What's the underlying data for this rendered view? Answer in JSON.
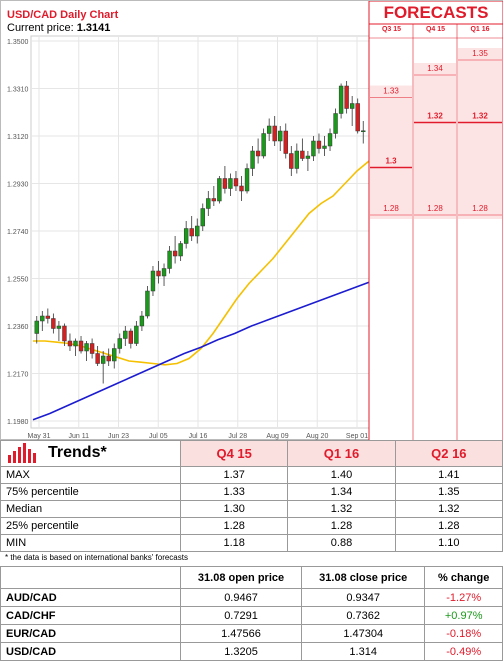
{
  "chart_data": {
    "type": "candlestick",
    "title": "USD/CAD Daily Chart",
    "current_price_label": "Current price: ",
    "current_price": "1.3141",
    "y_ticks": [
      "1.3500",
      "1.3310",
      "1.3120",
      "1.2930",
      "1.2740",
      "1.2550",
      "1.2360",
      "1.2170",
      "1.1980"
    ],
    "ylim": [
      1.198,
      1.35
    ],
    "x_ticks": [
      "May 31",
      "Jun 11",
      "Jun 23",
      "Jul 05",
      "Jul 16",
      "Jul 28",
      "Aug 09",
      "Aug 20",
      "Sep 01"
    ],
    "candles": [
      [
        1.233,
        1.24,
        1.229,
        1.238
      ],
      [
        1.238,
        1.242,
        1.234,
        1.24
      ],
      [
        1.24,
        1.243,
        1.237,
        1.239
      ],
      [
        1.239,
        1.241,
        1.233,
        1.235
      ],
      [
        1.235,
        1.238,
        1.23,
        1.236
      ],
      [
        1.236,
        1.237,
        1.228,
        1.23
      ],
      [
        1.23,
        1.233,
        1.226,
        1.228
      ],
      [
        1.228,
        1.231,
        1.224,
        1.23
      ],
      [
        1.23,
        1.232,
        1.225,
        1.226
      ],
      [
        1.226,
        1.23,
        1.222,
        1.229
      ],
      [
        1.229,
        1.231,
        1.223,
        1.225
      ],
      [
        1.225,
        1.228,
        1.22,
        1.221
      ],
      [
        1.221,
        1.226,
        1.213,
        1.224
      ],
      [
        1.224,
        1.227,
        1.22,
        1.222
      ],
      [
        1.222,
        1.229,
        1.219,
        1.227
      ],
      [
        1.227,
        1.233,
        1.225,
        1.231
      ],
      [
        1.231,
        1.236,
        1.228,
        1.234
      ],
      [
        1.234,
        1.235,
        1.227,
        1.229
      ],
      [
        1.229,
        1.238,
        1.228,
        1.236
      ],
      [
        1.236,
        1.242,
        1.234,
        1.24
      ],
      [
        1.24,
        1.252,
        1.239,
        1.25
      ],
      [
        1.25,
        1.26,
        1.248,
        1.258
      ],
      [
        1.258,
        1.262,
        1.253,
        1.256
      ],
      [
        1.256,
        1.261,
        1.252,
        1.259
      ],
      [
        1.259,
        1.268,
        1.257,
        1.266
      ],
      [
        1.266,
        1.272,
        1.261,
        1.264
      ],
      [
        1.264,
        1.27,
        1.262,
        1.269
      ],
      [
        1.269,
        1.278,
        1.267,
        1.275
      ],
      [
        1.275,
        1.28,
        1.27,
        1.272
      ],
      [
        1.272,
        1.279,
        1.269,
        1.276
      ],
      [
        1.276,
        1.285,
        1.274,
        1.283
      ],
      [
        1.283,
        1.29,
        1.28,
        1.287
      ],
      [
        1.287,
        1.292,
        1.284,
        1.286
      ],
      [
        1.286,
        1.296,
        1.285,
        1.295
      ],
      [
        1.295,
        1.3,
        1.289,
        1.291
      ],
      [
        1.291,
        1.297,
        1.288,
        1.295
      ],
      [
        1.295,
        1.298,
        1.29,
        1.292
      ],
      [
        1.292,
        1.296,
        1.286,
        1.29
      ],
      [
        1.29,
        1.301,
        1.289,
        1.299
      ],
      [
        1.299,
        1.308,
        1.296,
        1.306
      ],
      [
        1.306,
        1.311,
        1.301,
        1.304
      ],
      [
        1.304,
        1.315,
        1.303,
        1.313
      ],
      [
        1.313,
        1.319,
        1.31,
        1.316
      ],
      [
        1.316,
        1.32,
        1.308,
        1.31
      ],
      [
        1.31,
        1.316,
        1.306,
        1.314
      ],
      [
        1.314,
        1.317,
        1.303,
        1.305
      ],
      [
        1.305,
        1.308,
        1.296,
        1.299
      ],
      [
        1.299,
        1.309,
        1.297,
        1.306
      ],
      [
        1.306,
        1.311,
        1.302,
        1.303
      ],
      [
        1.303,
        1.306,
        1.298,
        1.304
      ],
      [
        1.304,
        1.312,
        1.302,
        1.31
      ],
      [
        1.31,
        1.313,
        1.305,
        1.307
      ],
      [
        1.307,
        1.312,
        1.304,
        1.308
      ],
      [
        1.308,
        1.315,
        1.306,
        1.313
      ],
      [
        1.313,
        1.323,
        1.311,
        1.321
      ],
      [
        1.321,
        1.333,
        1.319,
        1.332
      ],
      [
        1.332,
        1.334,
        1.321,
        1.323
      ],
      [
        1.323,
        1.328,
        1.316,
        1.325
      ],
      [
        1.325,
        1.327,
        1.313,
        1.314
      ],
      [
        1.314,
        1.318,
        1.309,
        1.3141
      ]
    ],
    "ma_fast": [
      1.23,
      1.23,
      1.2295,
      1.229,
      1.228,
      1.2265,
      1.225,
      1.2235,
      1.222,
      1.2215,
      1.221,
      1.2205,
      1.221,
      1.223,
      1.227,
      1.233,
      1.24,
      1.247,
      1.253,
      1.258,
      1.263,
      1.269,
      1.275,
      1.281,
      1.285,
      1.288,
      1.293,
      1.298,
      1.302
    ],
    "ma_slow": [
      1.1985,
      1.201,
      1.204,
      1.207,
      1.21,
      1.213,
      1.216,
      1.219,
      1.222,
      1.225,
      1.2275,
      1.2305,
      1.233,
      1.236,
      1.2385,
      1.241,
      1.2435,
      1.246,
      1.2485,
      1.251,
      1.2535
    ],
    "forecasts": {
      "title": "FORECASTS",
      "columns": [
        "Q3 15",
        "Q4 15",
        "Q1 16"
      ],
      "rows": [
        {
          "values": [
            "",
            "",
            "1.35"
          ],
          "y": 1.344
        },
        {
          "values": [
            "",
            "1.34",
            ""
          ],
          "y": 1.338
        },
        {
          "values": [
            "1.33",
            "",
            ""
          ],
          "y": 1.329
        },
        {
          "values": [
            "",
            "1.32",
            "1.32"
          ],
          "y": 1.319
        },
        {
          "values": [
            "1.3",
            "",
            ""
          ],
          "y": 1.301
        },
        {
          "values": [
            "1.28",
            "1.28",
            "1.28"
          ],
          "y": 1.282
        }
      ]
    }
  },
  "trends": {
    "title": "Trends*",
    "columns": [
      "Q4 15",
      "Q1 16",
      "Q2 16"
    ],
    "rows": [
      {
        "label": "MAX",
        "values": [
          "1.37",
          "1.40",
          "1.41"
        ]
      },
      {
        "label": "75% percentile",
        "values": [
          "1.33",
          "1.34",
          "1.35"
        ]
      },
      {
        "label": "Median",
        "values": [
          "1.30",
          "1.32",
          "1.32"
        ]
      },
      {
        "label": "25% percentile",
        "values": [
          "1.28",
          "1.28",
          "1.28"
        ]
      },
      {
        "label": "MIN",
        "values": [
          "1.18",
          "0.88",
          "1.10"
        ]
      }
    ],
    "note": "* the data is based on international banks' forecasts"
  },
  "pairs": {
    "columns": [
      "31.08 open price",
      "31.08 close price",
      "% change"
    ],
    "rows": [
      {
        "pair": "AUD/CAD",
        "open": "0.9467",
        "close": "0.9347",
        "change": "-1.27%",
        "dir": "neg"
      },
      {
        "pair": "CAD/CHF",
        "open": "0.7291",
        "close": "0.7362",
        "change": "+0.97%",
        "dir": "pos"
      },
      {
        "pair": "EUR/CAD",
        "open": "1.47566",
        "close": "1.47304",
        "change": "-0.18%",
        "dir": "neg"
      },
      {
        "pair": "USD/CAD",
        "open": "1.3205",
        "close": "1.314",
        "change": "-0.49%",
        "dir": "neg"
      }
    ]
  },
  "colors": {
    "red": "#e01b2b",
    "green": "#1a9a1a",
    "ma_fast": "#f5c000",
    "ma_slow": "#1c1cd0"
  }
}
